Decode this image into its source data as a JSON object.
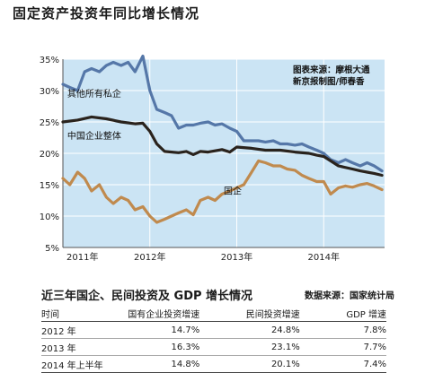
{
  "title": "固定资产投资年同比增长情况",
  "source_note": [
    "图表来源：摩根大通",
    "新京报制图/师春香"
  ],
  "chart_data": {
    "type": "line",
    "ylim": [
      5,
      35
    ],
    "yticks": [
      "5%",
      "10%",
      "15%",
      "20%",
      "25%",
      "30%",
      "35%"
    ],
    "xticks": [
      "2011年",
      "2012年",
      "2013年",
      "2014年"
    ],
    "xlim": [
      2011.0,
      2014.7
    ],
    "grid": true,
    "series": [
      {
        "name": "其他所有私企",
        "color": "#5577a8",
        "x": [
          2011.0,
          2011.08,
          2011.17,
          2011.25,
          2011.33,
          2011.42,
          2011.5,
          2011.58,
          2011.67,
          2011.75,
          2011.83,
          2011.92,
          2012.0,
          2012.08,
          2012.17,
          2012.25,
          2012.33,
          2012.42,
          2012.5,
          2012.58,
          2012.67,
          2012.75,
          2012.83,
          2012.92,
          2013.0,
          2013.08,
          2013.17,
          2013.25,
          2013.33,
          2013.42,
          2013.5,
          2013.58,
          2013.67,
          2013.75,
          2013.83,
          2013.92,
          2014.0,
          2014.08,
          2014.17,
          2014.25,
          2014.33,
          2014.42,
          2014.5,
          2014.58,
          2014.67
        ],
        "values": [
          31,
          30.5,
          30,
          33,
          33.5,
          33,
          34,
          34.5,
          34,
          34.5,
          33,
          35.5,
          30,
          27,
          26.5,
          26,
          24,
          24.5,
          24.5,
          24.8,
          25,
          24.5,
          24.7,
          24,
          23.5,
          22,
          22,
          22,
          21.8,
          22,
          21.5,
          21.5,
          21.3,
          21.5,
          21,
          20.5,
          20,
          19,
          18.5,
          19,
          18.5,
          18,
          18.5,
          18,
          17.2
        ]
      },
      {
        "name": "中国企业整体",
        "color": "#2a231d",
        "x": [
          2011.0,
          2011.17,
          2011.33,
          2011.5,
          2011.67,
          2011.83,
          2011.92,
          2012.0,
          2012.08,
          2012.17,
          2012.33,
          2012.42,
          2012.5,
          2012.58,
          2012.67,
          2012.83,
          2012.92,
          2013.0,
          2013.17,
          2013.33,
          2013.5,
          2013.67,
          2013.83,
          2013.92,
          2014.0,
          2014.17,
          2014.33,
          2014.42,
          2014.5,
          2014.58,
          2014.67
        ],
        "values": [
          25,
          25.3,
          25.8,
          25.5,
          25,
          24.7,
          24.8,
          23.5,
          21.5,
          20.3,
          20.1,
          20.3,
          19.8,
          20.3,
          20.2,
          20.6,
          20.2,
          21,
          20.8,
          20.5,
          20.5,
          20.2,
          20,
          19.7,
          19.5,
          18,
          17.5,
          17.2,
          17,
          16.8,
          16.5
        ]
      },
      {
        "name": "国企",
        "color": "#c08a4e",
        "x": [
          2011.0,
          2011.08,
          2011.17,
          2011.25,
          2011.33,
          2011.42,
          2011.5,
          2011.58,
          2011.67,
          2011.75,
          2011.83,
          2011.92,
          2012.0,
          2012.08,
          2012.17,
          2012.25,
          2012.33,
          2012.42,
          2012.5,
          2012.58,
          2012.67,
          2012.75,
          2012.83,
          2012.92,
          2013.0,
          2013.08,
          2013.17,
          2013.25,
          2013.33,
          2013.42,
          2013.5,
          2013.58,
          2013.67,
          2013.75,
          2013.83,
          2013.92,
          2014.0,
          2014.08,
          2014.17,
          2014.25,
          2014.33,
          2014.42,
          2014.5,
          2014.58,
          2014.67
        ],
        "values": [
          16,
          15,
          17,
          16,
          14,
          15,
          13,
          12,
          13,
          12.5,
          11,
          11.5,
          10,
          9,
          9.5,
          10,
          10.5,
          11,
          10.2,
          12.5,
          13,
          12.5,
          13.5,
          14,
          14.5,
          15,
          17,
          18.8,
          18.5,
          18,
          18,
          17.5,
          17.3,
          16.5,
          16,
          15.5,
          15.5,
          13.5,
          14.5,
          14.8,
          14.6,
          15,
          15.2,
          14.8,
          14.2
        ]
      }
    ]
  },
  "table": {
    "title": "近三年国企、民间投资及 GDP 增长情况",
    "source": "数据来源：国家统计局",
    "headers": [
      "时间",
      "国有企业投资增速",
      "民间投资增速",
      "GDP 增速"
    ],
    "rows": [
      [
        "2012 年",
        "14.7%",
        "24.8%",
        "7.8%"
      ],
      [
        "2013 年",
        "16.3%",
        "23.1%",
        "7.7%"
      ],
      [
        "2014 年上半年",
        "14.8%",
        "20.1%",
        "7.4%"
      ]
    ]
  }
}
